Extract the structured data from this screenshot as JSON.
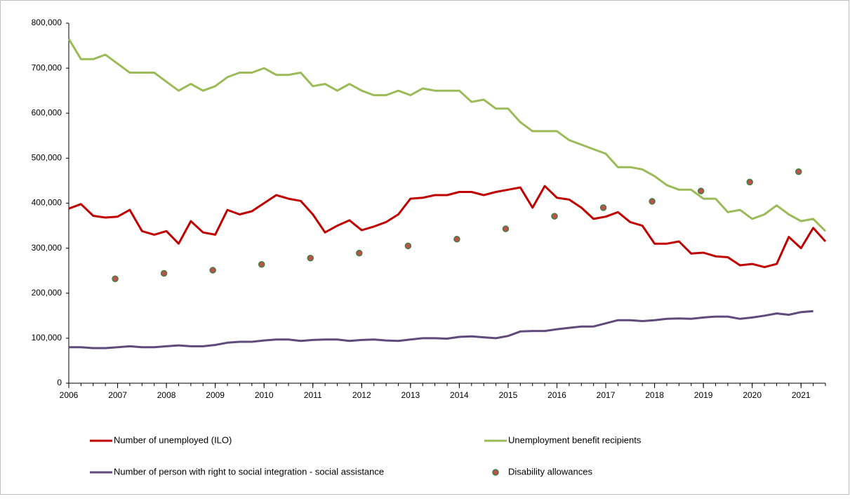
{
  "chart_data": {
    "type": "line",
    "x": [
      2006,
      2006.25,
      2006.5,
      2006.75,
      2007,
      2007.25,
      2007.5,
      2007.75,
      2008,
      2008.25,
      2008.5,
      2008.75,
      2009,
      2009.25,
      2009.5,
      2009.75,
      2010,
      2010.25,
      2010.5,
      2010.75,
      2011,
      2011.25,
      2011.5,
      2011.75,
      2012,
      2012.25,
      2012.5,
      2012.75,
      2013,
      2013.25,
      2013.5,
      2013.75,
      2014,
      2014.25,
      2014.5,
      2014.75,
      2015,
      2015.25,
      2015.5,
      2015.75,
      2016,
      2016.25,
      2016.5,
      2016.75,
      2017,
      2017.25,
      2017.5,
      2017.75,
      2018,
      2018.25,
      2018.5,
      2018.75,
      2019,
      2019.25,
      2019.5,
      2019.75,
      2020,
      2020.25,
      2020.5,
      2020.75,
      2021,
      2021.25,
      2021.5
    ],
    "series": [
      {
        "name": "Number of unemployed (ILO)",
        "type": "line",
        "color": "#c00000",
        "values": [
          388000,
          398000,
          372000,
          368000,
          370000,
          385000,
          338000,
          330000,
          338000,
          310000,
          360000,
          335000,
          330000,
          385000,
          375000,
          382000,
          400000,
          418000,
          410000,
          405000,
          375000,
          335000,
          350000,
          362000,
          340000,
          348000,
          358000,
          375000,
          410000,
          412000,
          418000,
          418000,
          425000,
          425000,
          418000,
          425000,
          430000,
          435000,
          390000,
          438000,
          412000,
          408000,
          390000,
          365000,
          370000,
          380000,
          358000,
          350000,
          310000,
          310000,
          315000,
          288000,
          290000,
          282000,
          280000,
          262000,
          265000,
          258000,
          265000,
          325000,
          300000,
          345000,
          315000
        ]
      },
      {
        "name": "Unemployment benefit recipients",
        "type": "line",
        "color": "#9bbb59",
        "values": [
          765000,
          720000,
          720000,
          730000,
          710000,
          690000,
          690000,
          690000,
          670000,
          650000,
          665000,
          650000,
          660000,
          680000,
          690000,
          690000,
          700000,
          685000,
          685000,
          690000,
          660000,
          665000,
          650000,
          665000,
          650000,
          640000,
          640000,
          650000,
          640000,
          655000,
          650000,
          650000,
          650000,
          625000,
          630000,
          610000,
          610000,
          580000,
          560000,
          560000,
          560000,
          540000,
          530000,
          520000,
          510000,
          480000,
          480000,
          475000,
          460000,
          440000,
          430000,
          430000,
          410000,
          410000,
          380000,
          385000,
          365000,
          375000,
          395000,
          375000,
          360000,
          365000,
          338000
        ]
      },
      {
        "name": "Number of person with right to social integration - social assistance",
        "type": "line",
        "color": "#604a7b",
        "values": [
          80000,
          80000,
          78000,
          78000,
          80000,
          82000,
          80000,
          80000,
          82000,
          84000,
          82000,
          82000,
          85000,
          90000,
          92000,
          92000,
          95000,
          97000,
          97000,
          94000,
          96000,
          97000,
          97000,
          94000,
          96000,
          97000,
          95000,
          94000,
          97000,
          100000,
          100000,
          99000,
          103000,
          104000,
          102000,
          100000,
          105000,
          115000,
          116000,
          116000,
          120000,
          123000,
          126000,
          126000,
          133000,
          140000,
          140000,
          138000,
          140000,
          143000,
          144000,
          143000,
          146000,
          148000,
          148000,
          143000,
          146000,
          150000,
          155000,
          152000,
          158000,
          160000,
          null
        ]
      },
      {
        "name": "Disability allowances",
        "type": "scatter",
        "color": "#c0504d",
        "x": [
          2006.95,
          2007.95,
          2008.95,
          2009.95,
          2010.95,
          2011.95,
          2012.95,
          2013.95,
          2014.95,
          2015.95,
          2016.95,
          2017.95,
          2018.95,
          2019.95,
          2020.95
        ],
        "values": [
          232000,
          244000,
          251000,
          264000,
          278000,
          289000,
          305000,
          320000,
          343000,
          371000,
          390000,
          404000,
          427000,
          447000,
          470000
        ]
      }
    ],
    "xlim": [
      2006,
      2021.5
    ],
    "xticks": [
      2006,
      2007,
      2008,
      2009,
      2010,
      2011,
      2012,
      2013,
      2014,
      2015,
      2016,
      2017,
      2018,
      2019,
      2020,
      2021
    ],
    "ylim": [
      0,
      800000
    ],
    "yticks": [
      0,
      {
        "value": 100000,
        "label": "100,000"
      },
      {
        "value": 200000,
        "label": "200,000"
      },
      {
        "value": 300000,
        "label": "300,000"
      },
      {
        "value": 400000,
        "label": "400,000"
      },
      {
        "value": 500000,
        "label": "500,000"
      },
      {
        "value": 600000,
        "label": "600,000"
      },
      {
        "value": 700000,
        "label": "700,000"
      },
      {
        "value": 800000,
        "label": "800,000"
      }
    ]
  }
}
